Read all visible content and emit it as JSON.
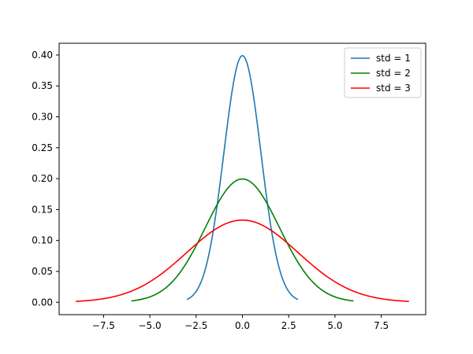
{
  "chart_data": {
    "type": "line",
    "grid": false,
    "legend_position": "top-right",
    "xlim": [
      -9.9,
      9.9
    ],
    "ylim": [
      -0.02,
      0.419
    ],
    "x_ticks": [
      -7.5,
      -5.0,
      -2.5,
      0.0,
      2.5,
      5.0,
      7.5
    ],
    "x_tick_labels": [
      "−7.5",
      "−5.0",
      "−2.5",
      "0.0",
      "2.5",
      "5.0",
      "7.5"
    ],
    "y_ticks": [
      0.0,
      0.05,
      0.1,
      0.15,
      0.2,
      0.25,
      0.3,
      0.35,
      0.4
    ],
    "y_tick_labels": [
      "0.00",
      "0.05",
      "0.10",
      "0.15",
      "0.20",
      "0.25",
      "0.30",
      "0.35",
      "0.40"
    ],
    "series": [
      {
        "name": "std = 1",
        "color": "#1f77b4",
        "x": [
          -3.0,
          -2.5,
          -2.0,
          -1.5,
          -1.0,
          -0.5,
          0.0,
          0.5,
          1.0,
          1.5,
          2.0,
          2.5,
          3.0
        ],
        "y": [
          0.0044,
          0.0175,
          0.054,
          0.1295,
          0.242,
          0.3521,
          0.3989,
          0.3521,
          0.242,
          0.1295,
          0.054,
          0.0175,
          0.0044
        ]
      },
      {
        "name": "std = 2",
        "color": "#008000",
        "x": [
          -6.0,
          -5.0,
          -4.0,
          -3.0,
          -2.0,
          -1.0,
          0.0,
          1.0,
          2.0,
          3.0,
          4.0,
          5.0,
          6.0
        ],
        "y": [
          0.0022,
          0.0088,
          0.027,
          0.0648,
          0.121,
          0.176,
          0.1995,
          0.176,
          0.121,
          0.0648,
          0.027,
          0.0088,
          0.0022
        ]
      },
      {
        "name": "std = 3",
        "color": "#ff0000",
        "x": [
          -9.0,
          -7.5,
          -6.0,
          -4.5,
          -3.0,
          -1.5,
          0.0,
          1.5,
          3.0,
          4.5,
          6.0,
          7.5,
          9.0
        ],
        "y": [
          0.0015,
          0.0058,
          0.018,
          0.0432,
          0.0807,
          0.1174,
          0.133,
          0.1174,
          0.0807,
          0.0432,
          0.018,
          0.0058,
          0.0015
        ]
      }
    ]
  }
}
